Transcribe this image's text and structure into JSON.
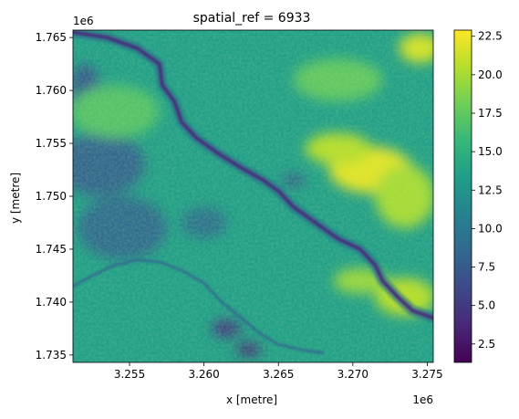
{
  "chart_data": {
    "type": "heatmap",
    "title": "spatial_ref = 6933",
    "xlabel": "x [metre]",
    "ylabel": "y [metre]",
    "x_offset_label": "1e6",
    "y_offset_label": "1e6",
    "xlim": [
      3.2512,
      3.2754
    ],
    "ylim": [
      1.7343,
      1.7657
    ],
    "x_ticks": [
      3.255,
      3.26,
      3.265,
      3.27,
      3.275
    ],
    "x_tick_labels": [
      "3.255",
      "3.260",
      "3.265",
      "3.270",
      "3.275"
    ],
    "y_ticks": [
      1.735,
      1.74,
      1.745,
      1.75,
      1.755,
      1.76,
      1.765
    ],
    "y_tick_labels": [
      "1.735",
      "1.740",
      "1.745",
      "1.750",
      "1.755",
      "1.760",
      "1.765"
    ],
    "colorbar": {
      "colormap": "viridis",
      "range": [
        1.3,
        22.9
      ],
      "ticks": [
        2.5,
        5.0,
        7.5,
        10.0,
        12.5,
        15.0,
        17.5,
        20.0,
        22.5
      ],
      "tick_labels": [
        "2.5",
        "5.0",
        "7.5",
        "10.0",
        "12.5",
        "15.0",
        "17.5",
        "20.0",
        "22.5"
      ]
    },
    "grid": false,
    "features": {
      "main_river": [
        [
          3.2512,
          1.7655
        ],
        [
          3.2535,
          1.765
        ],
        [
          3.2555,
          1.764
        ],
        [
          3.257,
          1.7625
        ],
        [
          3.2572,
          1.7605
        ],
        [
          3.258,
          1.759
        ],
        [
          3.2585,
          1.757
        ],
        [
          3.2595,
          1.7555
        ],
        [
          3.261,
          1.754
        ],
        [
          3.2625,
          1.7527
        ],
        [
          3.264,
          1.7515
        ],
        [
          3.265,
          1.7505
        ],
        [
          3.266,
          1.749
        ],
        [
          3.267,
          1.748
        ],
        [
          3.268,
          1.747
        ],
        [
          3.269,
          1.746
        ],
        [
          3.2705,
          1.745
        ],
        [
          3.2715,
          1.7435
        ],
        [
          3.272,
          1.742
        ],
        [
          3.273,
          1.7405
        ],
        [
          3.274,
          1.7392
        ],
        [
          3.2754,
          1.7385
        ]
      ],
      "tributary_river": [
        [
          3.2512,
          1.7415
        ],
        [
          3.2525,
          1.7425
        ],
        [
          3.254,
          1.7435
        ],
        [
          3.2555,
          1.744
        ],
        [
          3.257,
          1.7438
        ],
        [
          3.2585,
          1.743
        ],
        [
          3.26,
          1.7418
        ],
        [
          3.2612,
          1.74
        ],
        [
          3.2625,
          1.7385
        ],
        [
          3.2638,
          1.737
        ],
        [
          3.265,
          1.736
        ],
        [
          3.2665,
          1.7355
        ],
        [
          3.268,
          1.7352
        ]
      ],
      "bright_zones": [
        {
          "x": 3.2712,
          "y": 1.7525,
          "rx": 0.0028,
          "ry": 0.0022,
          "value": 22.0
        },
        {
          "x": 3.269,
          "y": 1.7545,
          "rx": 0.0022,
          "ry": 0.0015,
          "value": 20.5
        },
        {
          "x": 3.2735,
          "y": 1.75,
          "rx": 0.002,
          "ry": 0.003,
          "value": 20.0
        },
        {
          "x": 3.2745,
          "y": 1.764,
          "rx": 0.0014,
          "ry": 0.0014,
          "value": 21.5
        },
        {
          "x": 3.2735,
          "y": 1.7405,
          "rx": 0.002,
          "ry": 0.0018,
          "value": 20.5
        },
        {
          "x": 3.2705,
          "y": 1.742,
          "rx": 0.0018,
          "ry": 0.0012,
          "value": 19.5
        },
        {
          "x": 3.269,
          "y": 1.761,
          "rx": 0.003,
          "ry": 0.002,
          "value": 17.5
        },
        {
          "x": 3.254,
          "y": 1.758,
          "rx": 0.003,
          "ry": 0.0025,
          "value": 17.0
        }
      ],
      "dark_zones": [
        {
          "x": 3.253,
          "y": 1.753,
          "rx": 0.003,
          "ry": 0.003,
          "value": 8.5
        },
        {
          "x": 3.2545,
          "y": 1.747,
          "rx": 0.003,
          "ry": 0.003,
          "value": 9.0
        },
        {
          "x": 3.252,
          "y": 1.76,
          "rx": 0.001,
          "ry": 0.0025,
          "value": 7.5
        },
        {
          "x": 3.26,
          "y": 1.7475,
          "rx": 0.0015,
          "ry": 0.0015,
          "value": 9.5
        },
        {
          "x": 3.2615,
          "y": 1.7375,
          "rx": 0.001,
          "ry": 0.0008,
          "value": 5.0
        },
        {
          "x": 3.263,
          "y": 1.7355,
          "rx": 0.0008,
          "ry": 0.0006,
          "value": 3.5
        },
        {
          "x": 3.266,
          "y": 1.7515,
          "rx": 0.0008,
          "ry": 0.0005,
          "value": 7.0
        }
      ]
    }
  }
}
